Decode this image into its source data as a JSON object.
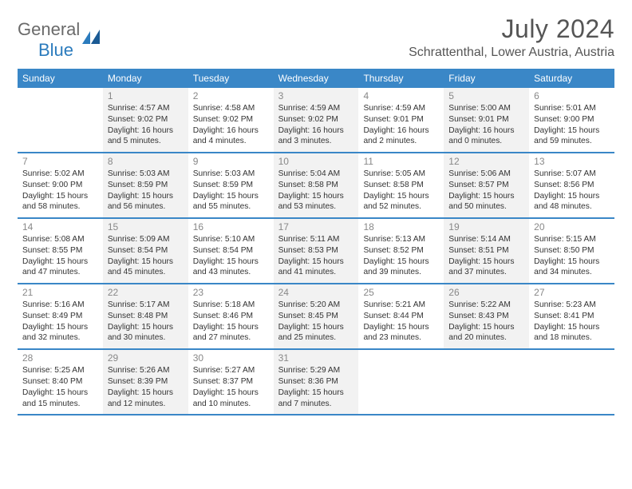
{
  "logo": {
    "word1": "General",
    "word2": "Blue"
  },
  "title": "July 2024",
  "location": "Schrattenthal, Lower Austria, Austria",
  "colors": {
    "headerBg": "#3a87c7",
    "headerText": "#ffffff",
    "borderColor": "#3a87c7",
    "grayCell": "#f2f2f2",
    "dayNumColor": "#888888",
    "bodyText": "#333333",
    "logoGray": "#6a6a6a",
    "logoBlue": "#2b7bbd"
  },
  "dayNames": [
    "Sunday",
    "Monday",
    "Tuesday",
    "Wednesday",
    "Thursday",
    "Friday",
    "Saturday"
  ],
  "weeks": [
    [
      {
        "num": "",
        "gray": false,
        "lines": []
      },
      {
        "num": "1",
        "gray": true,
        "lines": [
          "Sunrise: 4:57 AM",
          "Sunset: 9:02 PM",
          "Daylight: 16 hours",
          "and 5 minutes."
        ]
      },
      {
        "num": "2",
        "gray": false,
        "lines": [
          "Sunrise: 4:58 AM",
          "Sunset: 9:02 PM",
          "Daylight: 16 hours",
          "and 4 minutes."
        ]
      },
      {
        "num": "3",
        "gray": true,
        "lines": [
          "Sunrise: 4:59 AM",
          "Sunset: 9:02 PM",
          "Daylight: 16 hours",
          "and 3 minutes."
        ]
      },
      {
        "num": "4",
        "gray": false,
        "lines": [
          "Sunrise: 4:59 AM",
          "Sunset: 9:01 PM",
          "Daylight: 16 hours",
          "and 2 minutes."
        ]
      },
      {
        "num": "5",
        "gray": true,
        "lines": [
          "Sunrise: 5:00 AM",
          "Sunset: 9:01 PM",
          "Daylight: 16 hours",
          "and 0 minutes."
        ]
      },
      {
        "num": "6",
        "gray": false,
        "lines": [
          "Sunrise: 5:01 AM",
          "Sunset: 9:00 PM",
          "Daylight: 15 hours",
          "and 59 minutes."
        ]
      }
    ],
    [
      {
        "num": "7",
        "gray": false,
        "lines": [
          "Sunrise: 5:02 AM",
          "Sunset: 9:00 PM",
          "Daylight: 15 hours",
          "and 58 minutes."
        ]
      },
      {
        "num": "8",
        "gray": true,
        "lines": [
          "Sunrise: 5:03 AM",
          "Sunset: 8:59 PM",
          "Daylight: 15 hours",
          "and 56 minutes."
        ]
      },
      {
        "num": "9",
        "gray": false,
        "lines": [
          "Sunrise: 5:03 AM",
          "Sunset: 8:59 PM",
          "Daylight: 15 hours",
          "and 55 minutes."
        ]
      },
      {
        "num": "10",
        "gray": true,
        "lines": [
          "Sunrise: 5:04 AM",
          "Sunset: 8:58 PM",
          "Daylight: 15 hours",
          "and 53 minutes."
        ]
      },
      {
        "num": "11",
        "gray": false,
        "lines": [
          "Sunrise: 5:05 AM",
          "Sunset: 8:58 PM",
          "Daylight: 15 hours",
          "and 52 minutes."
        ]
      },
      {
        "num": "12",
        "gray": true,
        "lines": [
          "Sunrise: 5:06 AM",
          "Sunset: 8:57 PM",
          "Daylight: 15 hours",
          "and 50 minutes."
        ]
      },
      {
        "num": "13",
        "gray": false,
        "lines": [
          "Sunrise: 5:07 AM",
          "Sunset: 8:56 PM",
          "Daylight: 15 hours",
          "and 48 minutes."
        ]
      }
    ],
    [
      {
        "num": "14",
        "gray": false,
        "lines": [
          "Sunrise: 5:08 AM",
          "Sunset: 8:55 PM",
          "Daylight: 15 hours",
          "and 47 minutes."
        ]
      },
      {
        "num": "15",
        "gray": true,
        "lines": [
          "Sunrise: 5:09 AM",
          "Sunset: 8:54 PM",
          "Daylight: 15 hours",
          "and 45 minutes."
        ]
      },
      {
        "num": "16",
        "gray": false,
        "lines": [
          "Sunrise: 5:10 AM",
          "Sunset: 8:54 PM",
          "Daylight: 15 hours",
          "and 43 minutes."
        ]
      },
      {
        "num": "17",
        "gray": true,
        "lines": [
          "Sunrise: 5:11 AM",
          "Sunset: 8:53 PM",
          "Daylight: 15 hours",
          "and 41 minutes."
        ]
      },
      {
        "num": "18",
        "gray": false,
        "lines": [
          "Sunrise: 5:13 AM",
          "Sunset: 8:52 PM",
          "Daylight: 15 hours",
          "and 39 minutes."
        ]
      },
      {
        "num": "19",
        "gray": true,
        "lines": [
          "Sunrise: 5:14 AM",
          "Sunset: 8:51 PM",
          "Daylight: 15 hours",
          "and 37 minutes."
        ]
      },
      {
        "num": "20",
        "gray": false,
        "lines": [
          "Sunrise: 5:15 AM",
          "Sunset: 8:50 PM",
          "Daylight: 15 hours",
          "and 34 minutes."
        ]
      }
    ],
    [
      {
        "num": "21",
        "gray": false,
        "lines": [
          "Sunrise: 5:16 AM",
          "Sunset: 8:49 PM",
          "Daylight: 15 hours",
          "and 32 minutes."
        ]
      },
      {
        "num": "22",
        "gray": true,
        "lines": [
          "Sunrise: 5:17 AM",
          "Sunset: 8:48 PM",
          "Daylight: 15 hours",
          "and 30 minutes."
        ]
      },
      {
        "num": "23",
        "gray": false,
        "lines": [
          "Sunrise: 5:18 AM",
          "Sunset: 8:46 PM",
          "Daylight: 15 hours",
          "and 27 minutes."
        ]
      },
      {
        "num": "24",
        "gray": true,
        "lines": [
          "Sunrise: 5:20 AM",
          "Sunset: 8:45 PM",
          "Daylight: 15 hours",
          "and 25 minutes."
        ]
      },
      {
        "num": "25",
        "gray": false,
        "lines": [
          "Sunrise: 5:21 AM",
          "Sunset: 8:44 PM",
          "Daylight: 15 hours",
          "and 23 minutes."
        ]
      },
      {
        "num": "26",
        "gray": true,
        "lines": [
          "Sunrise: 5:22 AM",
          "Sunset: 8:43 PM",
          "Daylight: 15 hours",
          "and 20 minutes."
        ]
      },
      {
        "num": "27",
        "gray": false,
        "lines": [
          "Sunrise: 5:23 AM",
          "Sunset: 8:41 PM",
          "Daylight: 15 hours",
          "and 18 minutes."
        ]
      }
    ],
    [
      {
        "num": "28",
        "gray": false,
        "lines": [
          "Sunrise: 5:25 AM",
          "Sunset: 8:40 PM",
          "Daylight: 15 hours",
          "and 15 minutes."
        ]
      },
      {
        "num": "29",
        "gray": true,
        "lines": [
          "Sunrise: 5:26 AM",
          "Sunset: 8:39 PM",
          "Daylight: 15 hours",
          "and 12 minutes."
        ]
      },
      {
        "num": "30",
        "gray": false,
        "lines": [
          "Sunrise: 5:27 AM",
          "Sunset: 8:37 PM",
          "Daylight: 15 hours",
          "and 10 minutes."
        ]
      },
      {
        "num": "31",
        "gray": true,
        "lines": [
          "Sunrise: 5:29 AM",
          "Sunset: 8:36 PM",
          "Daylight: 15 hours",
          "and 7 minutes."
        ]
      },
      {
        "num": "",
        "gray": false,
        "lines": []
      },
      {
        "num": "",
        "gray": false,
        "lines": []
      },
      {
        "num": "",
        "gray": false,
        "lines": []
      }
    ]
  ]
}
